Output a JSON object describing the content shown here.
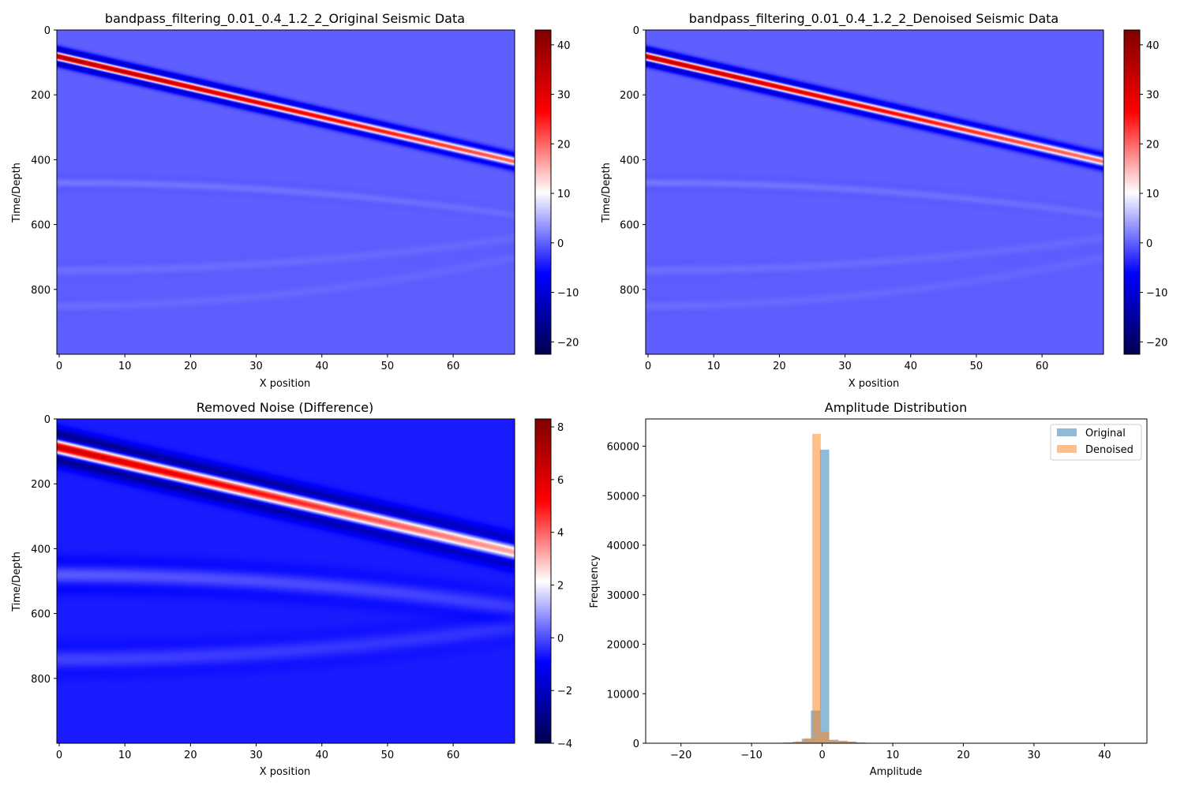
{
  "chart_data": [
    {
      "type": "heatmap",
      "title": "bandpass_filtering_0.01_0.4_1.2_2_Original Seismic Data",
      "xlabel": "X position",
      "ylabel": "Time/Depth",
      "xlim": [
        0,
        69
      ],
      "ylim": [
        1000,
        0
      ],
      "xticks": [
        "0",
        "10",
        "20",
        "30",
        "40",
        "50",
        "60"
      ],
      "yticks": [
        "0",
        "200",
        "400",
        "600",
        "800"
      ],
      "colormap": "seismic",
      "colorbar_range": [
        -22.5,
        43
      ],
      "colorbar_ticks": [
        "−20",
        "−10",
        "0",
        "10",
        "20",
        "30",
        "40"
      ],
      "background_value": 0,
      "events": [
        {
          "shape": "linear",
          "t0": 80,
          "t1": 405,
          "peak": 40,
          "width": 12
        },
        {
          "shape": "curve",
          "t0": 470,
          "t1": 570,
          "peak": 1.5,
          "width": 12
        },
        {
          "shape": "curve",
          "t0": 740,
          "t1": 640,
          "peak": 1.0,
          "width": 15
        },
        {
          "shape": "curve",
          "t0": 850,
          "t1": 700,
          "peak": 0.8,
          "width": 15
        }
      ]
    },
    {
      "type": "heatmap",
      "title": "bandpass_filtering_0.01_0.4_1.2_2_Denoised Seismic Data",
      "xlabel": "X position",
      "ylabel": "Time/Depth",
      "xlim": [
        0,
        69
      ],
      "ylim": [
        1000,
        0
      ],
      "xticks": [
        "0",
        "10",
        "20",
        "30",
        "40",
        "50",
        "60"
      ],
      "yticks": [
        "0",
        "200",
        "400",
        "600",
        "800"
      ],
      "colormap": "seismic",
      "colorbar_range": [
        -22.5,
        43
      ],
      "colorbar_ticks": [
        "−20",
        "−10",
        "0",
        "10",
        "20",
        "30",
        "40"
      ],
      "background_value": 0,
      "events": [
        {
          "shape": "linear",
          "t0": 80,
          "t1": 405,
          "peak": 38,
          "width": 12
        },
        {
          "shape": "curve",
          "t0": 470,
          "t1": 570,
          "peak": 1.5,
          "width": 12
        },
        {
          "shape": "curve",
          "t0": 740,
          "t1": 640,
          "peak": 1.0,
          "width": 15
        },
        {
          "shape": "curve",
          "t0": 850,
          "t1": 700,
          "peak": 0.8,
          "width": 15
        }
      ]
    },
    {
      "type": "heatmap",
      "title": "Removed Noise (Difference)",
      "xlabel": "X position",
      "ylabel": "Time/Depth",
      "xlim": [
        0,
        69
      ],
      "ylim": [
        1000,
        0
      ],
      "xticks": [
        "0",
        "10",
        "20",
        "30",
        "40",
        "50",
        "60"
      ],
      "yticks": [
        "0",
        "200",
        "400",
        "600",
        "800"
      ],
      "colormap": "seismic",
      "colorbar_range": [
        -4,
        8.3
      ],
      "colorbar_ticks": [
        "−4",
        "−2",
        "0",
        "2",
        "4",
        "6",
        "8"
      ],
      "background_value": -0.6,
      "events": [
        {
          "shape": "linear",
          "t0": 85,
          "t1": 410,
          "peak": 7.5,
          "width": 22
        },
        {
          "shape": "curve",
          "t0": 480,
          "t1": 580,
          "peak": 0.8,
          "width": 25
        },
        {
          "shape": "curve",
          "t0": 740,
          "t1": 640,
          "peak": 0.5,
          "width": 25
        }
      ]
    },
    {
      "type": "histogram",
      "title": "Amplitude Distribution",
      "xlabel": "Amplitude",
      "ylabel": "Frequency",
      "xlim": [
        -25,
        46
      ],
      "ylim": [
        0,
        65500
      ],
      "xticks": [
        "−20",
        "−10",
        "0",
        "10",
        "20",
        "30",
        "40"
      ],
      "yticks": [
        "0",
        "10000",
        "20000",
        "30000",
        "40000",
        "50000",
        "60000"
      ],
      "legend_position": "top-right",
      "series": [
        {
          "name": "Original",
          "color": "#1f77b4",
          "opacity": 0.5,
          "bins": [
            {
              "x0": -8.1,
              "x1": -6.8,
              "count": 40
            },
            {
              "x0": -6.8,
              "x1": -5.5,
              "count": 90
            },
            {
              "x0": -5.5,
              "x1": -4.2,
              "count": 150
            },
            {
              "x0": -4.2,
              "x1": -2.9,
              "count": 300
            },
            {
              "x0": -2.9,
              "x1": -1.6,
              "count": 900
            },
            {
              "x0": -1.6,
              "x1": -0.3,
              "count": 6600
            },
            {
              "x0": -0.3,
              "x1": 1.0,
              "count": 59300
            },
            {
              "x0": 1.0,
              "x1": 2.3,
              "count": 700
            },
            {
              "x0": 2.3,
              "x1": 3.6,
              "count": 500
            },
            {
              "x0": 3.6,
              "x1": 4.9,
              "count": 350
            },
            {
              "x0": 4.9,
              "x1": 6.2,
              "count": 150
            },
            {
              "x0": 6.2,
              "x1": 7.5,
              "count": 80
            },
            {
              "x0": 7.5,
              "x1": 8.8,
              "count": 50
            },
            {
              "x0": 8.8,
              "x1": 10.1,
              "count": 30
            }
          ]
        },
        {
          "name": "Denoised",
          "color": "#ff7f0e",
          "opacity": 0.5,
          "bins": [
            {
              "x0": -6.2,
              "x1": -5.0,
              "count": 60
            },
            {
              "x0": -5.0,
              "x1": -3.8,
              "count": 150
            },
            {
              "x0": -3.8,
              "x1": -2.6,
              "count": 400
            },
            {
              "x0": -2.6,
              "x1": -1.4,
              "count": 1000
            },
            {
              "x0": -1.4,
              "x1": -0.2,
              "count": 62500
            },
            {
              "x0": -0.2,
              "x1": 1.0,
              "count": 2300
            },
            {
              "x0": 1.0,
              "x1": 2.2,
              "count": 600
            },
            {
              "x0": 2.2,
              "x1": 3.4,
              "count": 450
            },
            {
              "x0": 3.4,
              "x1": 4.6,
              "count": 300
            },
            {
              "x0": 4.6,
              "x1": 5.8,
              "count": 120
            }
          ]
        }
      ]
    }
  ]
}
